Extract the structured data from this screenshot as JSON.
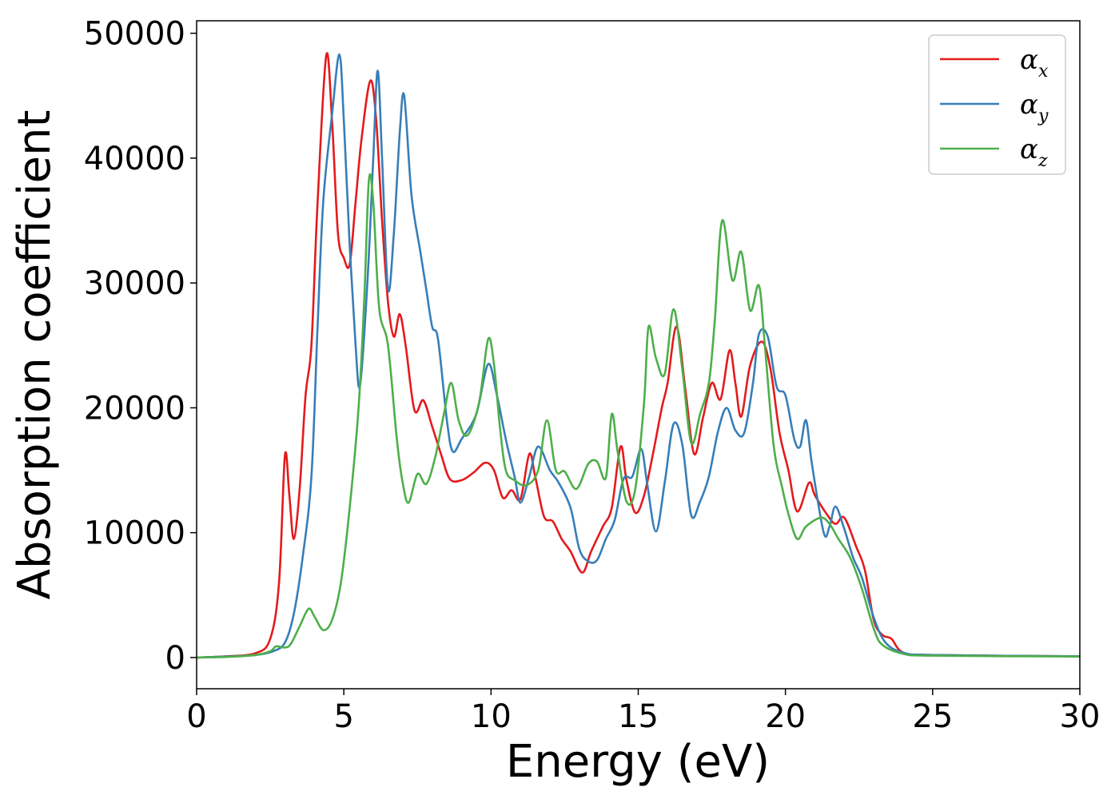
{
  "chart_data": {
    "type": "line",
    "xlabel": "Energy (eV)",
    "ylabel": "Absorption coefficient",
    "xlim": [
      0,
      30
    ],
    "ylim": [
      -2500,
      51000
    ],
    "xticks": [
      0,
      5,
      10,
      15,
      20,
      25,
      30
    ],
    "yticks": [
      0,
      10000,
      20000,
      30000,
      40000,
      50000
    ],
    "grid": false,
    "legend_position": "top-right",
    "series": [
      {
        "name": "α",
        "subscript": "x",
        "color": "#e41a1c",
        "points": [
          [
            0,
            0
          ],
          [
            1,
            100
          ],
          [
            2,
            350
          ],
          [
            2.5,
            1500
          ],
          [
            2.8,
            6000
          ],
          [
            3.0,
            16200
          ],
          [
            3.15,
            13000
          ],
          [
            3.3,
            9500
          ],
          [
            3.5,
            13500
          ],
          [
            3.7,
            21000
          ],
          [
            3.9,
            25000
          ],
          [
            4.1,
            36000
          ],
          [
            4.4,
            48200
          ],
          [
            4.6,
            43000
          ],
          [
            4.8,
            34000
          ],
          [
            5.0,
            32000
          ],
          [
            5.2,
            31500
          ],
          [
            5.4,
            36500
          ],
          [
            5.6,
            41500
          ],
          [
            5.9,
            46200
          ],
          [
            6.1,
            43000
          ],
          [
            6.3,
            35000
          ],
          [
            6.5,
            28500
          ],
          [
            6.7,
            25700
          ],
          [
            6.9,
            27500
          ],
          [
            7.1,
            25000
          ],
          [
            7.4,
            19800
          ],
          [
            7.7,
            20600
          ],
          [
            8.0,
            18500
          ],
          [
            8.3,
            16300
          ],
          [
            8.6,
            14300
          ],
          [
            9.0,
            14200
          ],
          [
            9.4,
            14800
          ],
          [
            9.8,
            15600
          ],
          [
            10.1,
            15000
          ],
          [
            10.4,
            12800
          ],
          [
            10.7,
            13400
          ],
          [
            11.0,
            12700
          ],
          [
            11.3,
            16300
          ],
          [
            11.5,
            14500
          ],
          [
            11.8,
            11300
          ],
          [
            12.1,
            10900
          ],
          [
            12.4,
            9500
          ],
          [
            12.7,
            8500
          ],
          [
            13.1,
            6800
          ],
          [
            13.4,
            8500
          ],
          [
            13.8,
            10500
          ],
          [
            14.1,
            12000
          ],
          [
            14.4,
            16900
          ],
          [
            14.6,
            14200
          ],
          [
            14.9,
            11600
          ],
          [
            15.2,
            13000
          ],
          [
            15.5,
            16300
          ],
          [
            15.8,
            20000
          ],
          [
            16.0,
            22000
          ],
          [
            16.3,
            26500
          ],
          [
            16.6,
            21500
          ],
          [
            16.9,
            16300
          ],
          [
            17.2,
            19200
          ],
          [
            17.5,
            22000
          ],
          [
            17.8,
            20700
          ],
          [
            18.1,
            24600
          ],
          [
            18.3,
            22000
          ],
          [
            18.5,
            19300
          ],
          [
            18.8,
            23400
          ],
          [
            19.2,
            25300
          ],
          [
            19.5,
            23000
          ],
          [
            19.8,
            18000
          ],
          [
            20.1,
            15000
          ],
          [
            20.4,
            11700
          ],
          [
            20.8,
            14000
          ],
          [
            21.0,
            13000
          ],
          [
            21.4,
            11500
          ],
          [
            21.7,
            10700
          ],
          [
            22.0,
            11200
          ],
          [
            22.4,
            8900
          ],
          [
            22.7,
            7000
          ],
          [
            23.0,
            3000
          ],
          [
            23.3,
            1800
          ],
          [
            23.6,
            1500
          ],
          [
            24.0,
            400
          ],
          [
            25.0,
            200
          ],
          [
            30.0,
            100
          ]
        ]
      },
      {
        "name": "α",
        "subscript": "y",
        "color": "#377eb8",
        "points": [
          [
            0,
            0
          ],
          [
            1,
            80
          ],
          [
            2,
            200
          ],
          [
            2.6,
            500
          ],
          [
            3.0,
            1200
          ],
          [
            3.3,
            3500
          ],
          [
            3.6,
            8000
          ],
          [
            3.9,
            14500
          ],
          [
            4.1,
            26000
          ],
          [
            4.3,
            36500
          ],
          [
            4.6,
            43500
          ],
          [
            4.85,
            48300
          ],
          [
            5.0,
            43000
          ],
          [
            5.2,
            33000
          ],
          [
            5.4,
            25000
          ],
          [
            5.55,
            21800
          ],
          [
            5.8,
            30000
          ],
          [
            6.0,
            40000
          ],
          [
            6.15,
            47000
          ],
          [
            6.3,
            40000
          ],
          [
            6.5,
            29500
          ],
          [
            6.7,
            34000
          ],
          [
            6.9,
            42000
          ],
          [
            7.05,
            45000
          ],
          [
            7.3,
            37000
          ],
          [
            7.6,
            32500
          ],
          [
            7.8,
            29500
          ],
          [
            8.0,
            26500
          ],
          [
            8.2,
            25500
          ],
          [
            8.5,
            19000
          ],
          [
            8.7,
            16500
          ],
          [
            9.0,
            17500
          ],
          [
            9.5,
            19500
          ],
          [
            9.9,
            23500
          ],
          [
            10.2,
            21000
          ],
          [
            10.5,
            17500
          ],
          [
            10.8,
            14500
          ],
          [
            11.0,
            12400
          ],
          [
            11.3,
            14500
          ],
          [
            11.6,
            16900
          ],
          [
            12.0,
            15000
          ],
          [
            12.3,
            14000
          ],
          [
            12.7,
            12000
          ],
          [
            13.0,
            8700
          ],
          [
            13.3,
            7700
          ],
          [
            13.6,
            7800
          ],
          [
            13.9,
            9500
          ],
          [
            14.2,
            11000
          ],
          [
            14.5,
            14300
          ],
          [
            14.8,
            14500
          ],
          [
            15.1,
            16700
          ],
          [
            15.3,
            14000
          ],
          [
            15.6,
            10100
          ],
          [
            15.9,
            14000
          ],
          [
            16.2,
            18700
          ],
          [
            16.5,
            17000
          ],
          [
            16.8,
            11400
          ],
          [
            17.1,
            12500
          ],
          [
            17.4,
            14500
          ],
          [
            17.7,
            18000
          ],
          [
            18.0,
            20000
          ],
          [
            18.3,
            18200
          ],
          [
            18.6,
            18000
          ],
          [
            18.9,
            22000
          ],
          [
            19.1,
            25900
          ],
          [
            19.4,
            25700
          ],
          [
            19.7,
            21700
          ],
          [
            20.0,
            21000
          ],
          [
            20.3,
            17500
          ],
          [
            20.5,
            16900
          ],
          [
            20.7,
            19000
          ],
          [
            20.9,
            15500
          ],
          [
            21.3,
            10000
          ],
          [
            21.5,
            10500
          ],
          [
            21.7,
            12100
          ],
          [
            22.0,
            10300
          ],
          [
            22.3,
            8000
          ],
          [
            22.6,
            6400
          ],
          [
            23.0,
            3200
          ],
          [
            23.4,
            1200
          ],
          [
            24.0,
            400
          ],
          [
            25.0,
            200
          ],
          [
            30.0,
            100
          ]
        ]
      },
      {
        "name": "α",
        "subscript": "z",
        "color": "#4daf4a",
        "points": [
          [
            0,
            0
          ],
          [
            1,
            50
          ],
          [
            2,
            200
          ],
          [
            2.5,
            500
          ],
          [
            2.7,
            900
          ],
          [
            3.0,
            800
          ],
          [
            3.2,
            1100
          ],
          [
            3.5,
            2500
          ],
          [
            3.8,
            3900
          ],
          [
            4.0,
            3300
          ],
          [
            4.3,
            2200
          ],
          [
            4.6,
            3000
          ],
          [
            4.9,
            6000
          ],
          [
            5.2,
            12000
          ],
          [
            5.5,
            20000
          ],
          [
            5.7,
            29000
          ],
          [
            5.85,
            38200
          ],
          [
            6.0,
            36500
          ],
          [
            6.2,
            28000
          ],
          [
            6.5,
            25000
          ],
          [
            6.8,
            17500
          ],
          [
            7.0,
            14000
          ],
          [
            7.2,
            12400
          ],
          [
            7.5,
            14700
          ],
          [
            7.8,
            13900
          ],
          [
            8.1,
            16000
          ],
          [
            8.4,
            19500
          ],
          [
            8.65,
            22000
          ],
          [
            8.9,
            19000
          ],
          [
            9.2,
            17800
          ],
          [
            9.6,
            20500
          ],
          [
            9.9,
            25500
          ],
          [
            10.1,
            23500
          ],
          [
            10.3,
            18500
          ],
          [
            10.5,
            15000
          ],
          [
            10.8,
            14200
          ],
          [
            11.2,
            13800
          ],
          [
            11.6,
            15000
          ],
          [
            11.9,
            19000
          ],
          [
            12.2,
            15000
          ],
          [
            12.5,
            14900
          ],
          [
            12.9,
            13500
          ],
          [
            13.3,
            15500
          ],
          [
            13.6,
            15700
          ],
          [
            13.9,
            14400
          ],
          [
            14.1,
            19500
          ],
          [
            14.3,
            16500
          ],
          [
            14.6,
            12500
          ],
          [
            14.9,
            13500
          ],
          [
            15.2,
            20500
          ],
          [
            15.35,
            26500
          ],
          [
            15.6,
            24000
          ],
          [
            15.9,
            22700
          ],
          [
            16.2,
            27900
          ],
          [
            16.5,
            23000
          ],
          [
            16.8,
            17200
          ],
          [
            17.1,
            19500
          ],
          [
            17.4,
            22000
          ],
          [
            17.6,
            27000
          ],
          [
            17.85,
            35000
          ],
          [
            18.2,
            30200
          ],
          [
            18.5,
            32500
          ],
          [
            18.8,
            27800
          ],
          [
            19.1,
            29800
          ],
          [
            19.3,
            25000
          ],
          [
            19.6,
            17000
          ],
          [
            19.9,
            13500
          ],
          [
            20.1,
            11500
          ],
          [
            20.4,
            9500
          ],
          [
            20.7,
            10500
          ],
          [
            21.2,
            11200
          ],
          [
            21.5,
            10700
          ],
          [
            21.8,
            9500
          ],
          [
            22.2,
            8000
          ],
          [
            22.6,
            5500
          ],
          [
            23.0,
            2300
          ],
          [
            23.3,
            1000
          ],
          [
            24.0,
            300
          ],
          [
            25.0,
            150
          ],
          [
            30.0,
            80
          ]
        ]
      }
    ]
  }
}
